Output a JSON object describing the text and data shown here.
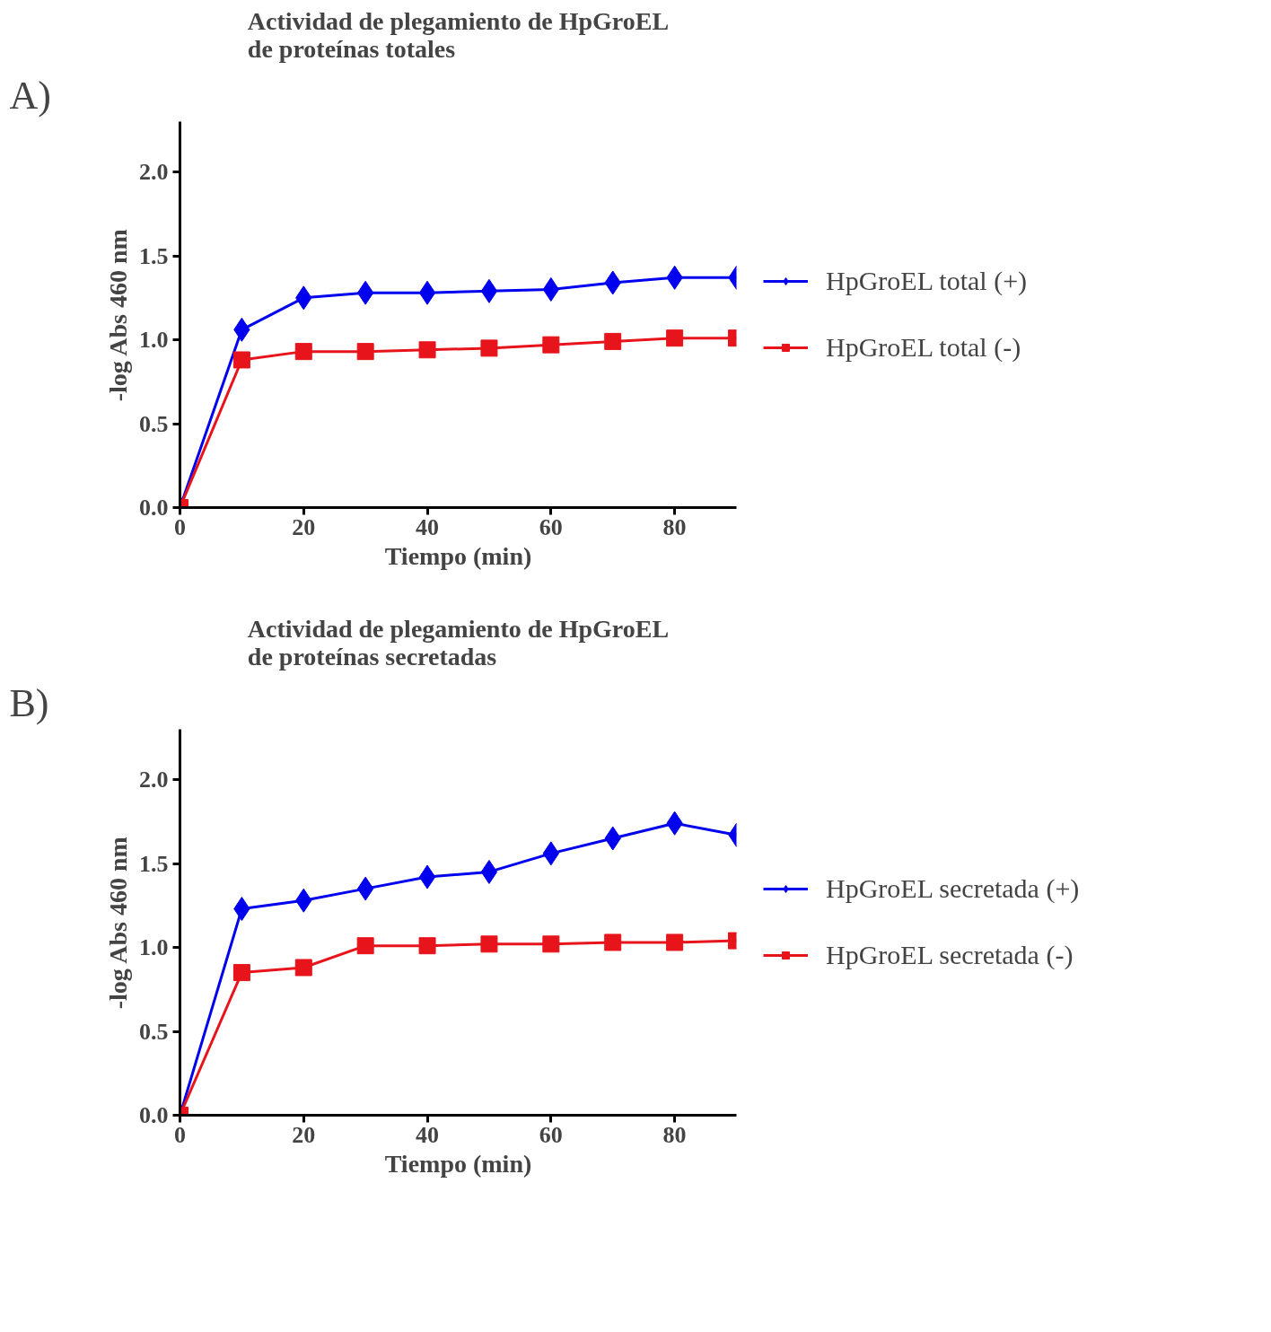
{
  "chart_data": [
    {
      "type": "line",
      "title": "Actividad de plegamiento de HpGroEL\nde proteínas totales",
      "xlabel": "Tiempo (min)",
      "ylabel": "-log Abs 460 nm",
      "annotations": [
        "A)"
      ],
      "x": [
        0,
        10,
        20,
        30,
        40,
        50,
        60,
        70,
        80,
        90
      ],
      "xlim": [
        0,
        90
      ],
      "xticks": [
        0,
        20,
        40,
        60,
        80
      ],
      "ylim": [
        0,
        2.3
      ],
      "yticks": [
        {
          "value": 0,
          "label": "0.0"
        },
        {
          "value": 0.5,
          "label": "0.5"
        },
        {
          "value": 1,
          "label": "1.0"
        },
        {
          "value": 1.5,
          "label": "1.5"
        },
        {
          "value": 2,
          "label": "2.0"
        }
      ],
      "grid": false,
      "legend": "right",
      "line_style": "solid",
      "series": [
        {
          "name": "HpGroEL total (+)",
          "color": "#0000ee",
          "marker": "diamond",
          "values": [
            0,
            1.06,
            1.25,
            1.28,
            1.28,
            1.29,
            1.3,
            1.34,
            1.37,
            1.37
          ]
        },
        {
          "name": "HpGroEL total (-)",
          "color": "#e8141b",
          "marker": "square",
          "values": [
            0,
            0.88,
            0.93,
            0.93,
            0.94,
            0.95,
            0.97,
            0.99,
            1.01,
            1.01
          ]
        }
      ]
    },
    {
      "type": "line",
      "title": "Actividad de plegamiento de HpGroEL\nde proteínas secretadas",
      "xlabel": "Tiempo (min)",
      "ylabel": "-log Abs 460 nm",
      "annotations": [
        "B)"
      ],
      "x": [
        0,
        10,
        20,
        30,
        40,
        50,
        60,
        70,
        80,
        90
      ],
      "xlim": [
        0,
        90
      ],
      "xticks": [
        0,
        20,
        40,
        60,
        80
      ],
      "ylim": [
        0,
        2.3
      ],
      "yticks": [
        {
          "value": 0,
          "label": "0.0"
        },
        {
          "value": 0.5,
          "label": "0.5"
        },
        {
          "value": 1,
          "label": "1.0"
        },
        {
          "value": 1.5,
          "label": "1.5"
        },
        {
          "value": 2,
          "label": "2.0"
        }
      ],
      "grid": false,
      "legend": "right",
      "line_style": "solid",
      "series": [
        {
          "name": "HpGroEL secretada (+)",
          "color": "#0000ee",
          "marker": "diamond",
          "values": [
            0,
            1.23,
            1.28,
            1.35,
            1.42,
            1.45,
            1.56,
            1.65,
            1.74,
            1.67
          ]
        },
        {
          "name": "HpGroEL secretada (-)",
          "color": "#e8141b",
          "marker": "square",
          "values": [
            0,
            0.85,
            0.88,
            1.01,
            1.01,
            1.02,
            1.02,
            1.03,
            1.03,
            1.04
          ]
        }
      ]
    }
  ]
}
